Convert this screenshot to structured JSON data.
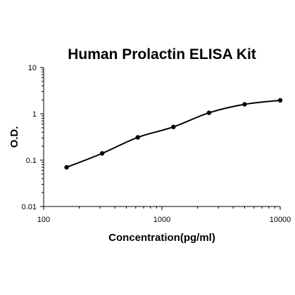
{
  "chart_data": {
    "type": "scatter",
    "title": "Human Prolactin ELISA Kit",
    "xlabel": "Concentration(pg/ml)",
    "ylabel": "O.D.",
    "x_scale": "log",
    "y_scale": "log",
    "xlim": [
      100,
      10000
    ],
    "ylim": [
      0.01,
      10
    ],
    "x_ticks": [
      "100",
      "1000",
      "10000"
    ],
    "y_ticks": [
      "10",
      "1",
      "0.1",
      "0.01"
    ],
    "grid": false,
    "legend": "none",
    "series": [
      {
        "x": [
          156.25,
          312.5,
          625,
          1250,
          2500,
          5000,
          10000
        ],
        "y": [
          0.07,
          0.14,
          0.31,
          0.52,
          1.05,
          1.6,
          1.95
        ],
        "fit_curve": true
      }
    ]
  }
}
